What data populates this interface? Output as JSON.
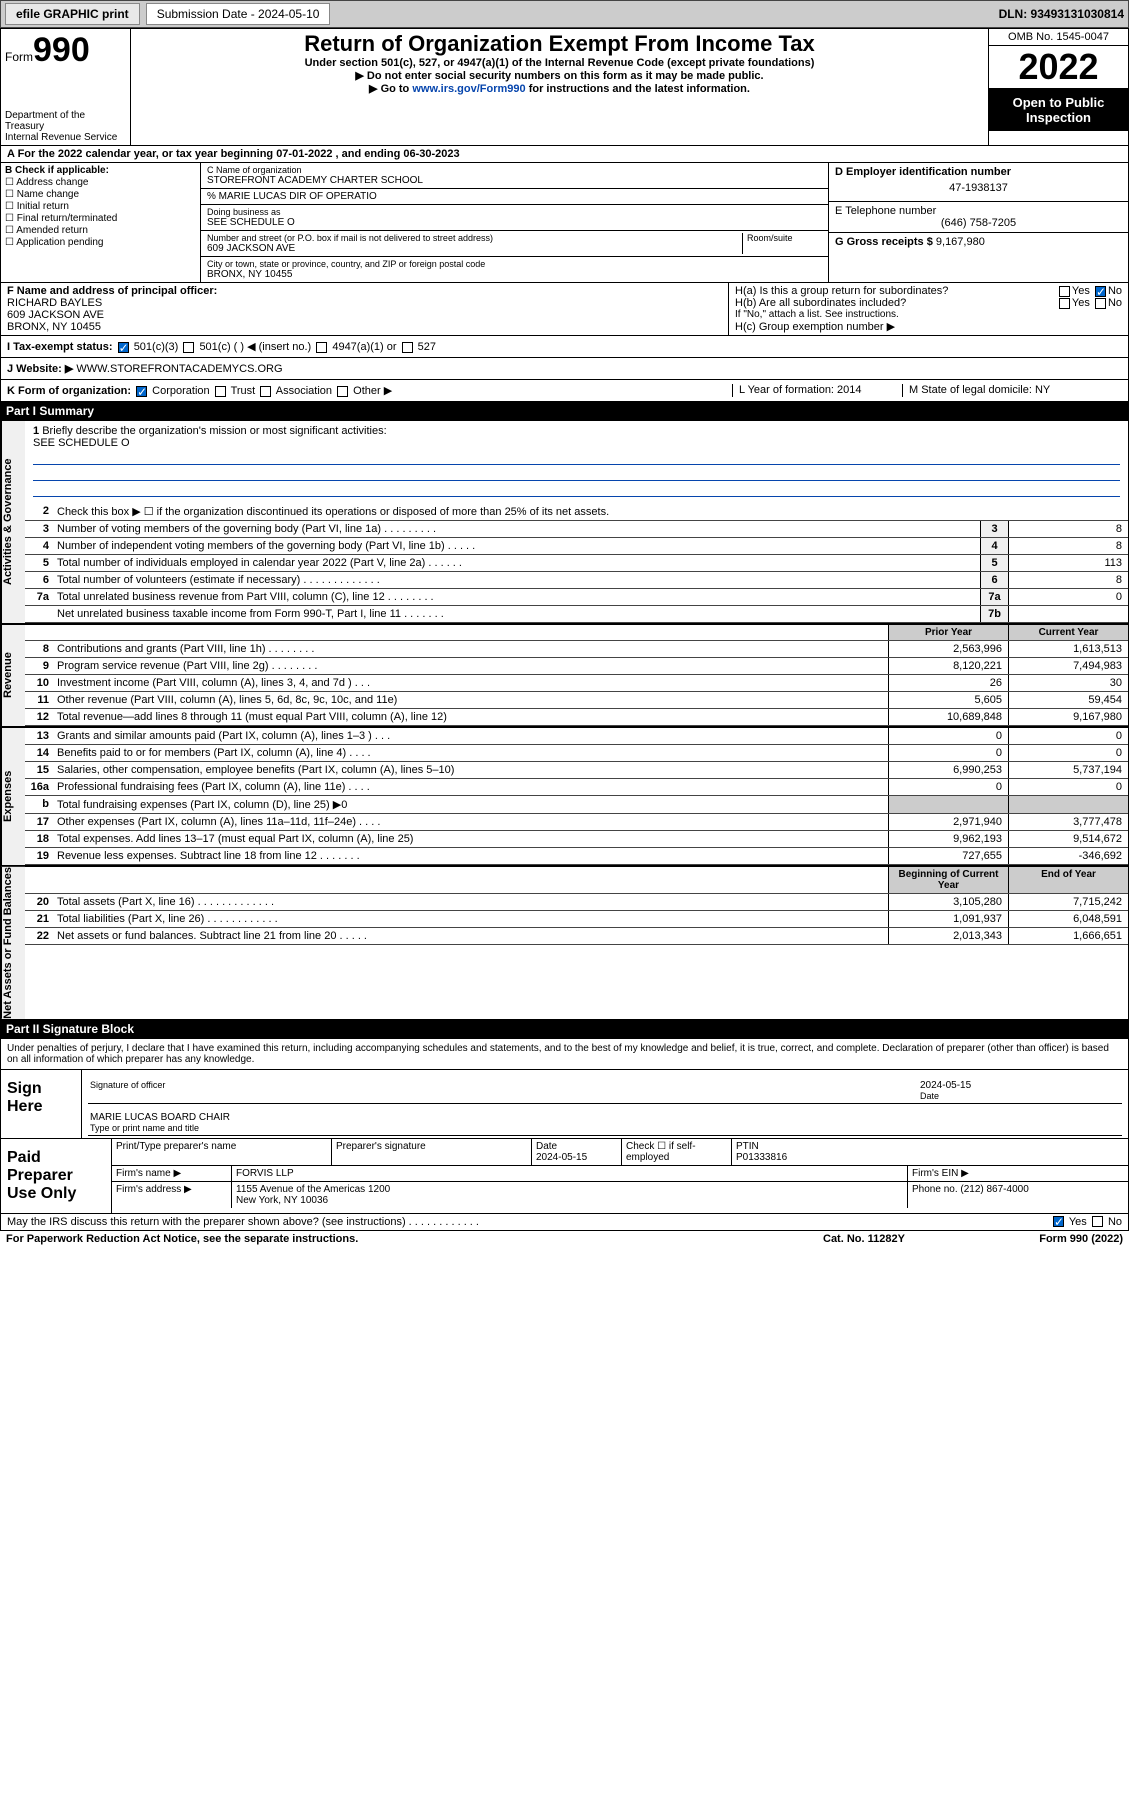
{
  "topbar": {
    "efile": "efile GRAPHIC print",
    "submission": "Submission Date - 2024-05-10",
    "dln": "DLN: 93493131030814"
  },
  "header": {
    "form_label": "Form",
    "form_num": "990",
    "dept": "Department of the Treasury",
    "irs": "Internal Revenue Service",
    "title": "Return of Organization Exempt From Income Tax",
    "sub1": "Under section 501(c), 527, or 4947(a)(1) of the Internal Revenue Code (except private foundations)",
    "sub2": "▶ Do not enter social security numbers on this form as it may be made public.",
    "sub3_pre": "▶ Go to ",
    "sub3_link": "www.irs.gov/Form990",
    "sub3_post": " for instructions and the latest information.",
    "omb": "OMB No. 1545-0047",
    "year": "2022",
    "open": "Open to Public Inspection"
  },
  "row_a": "A For the 2022 calendar year, or tax year beginning 07-01-2022    , and ending 06-30-2023",
  "box_b": {
    "title": "B Check if applicable:",
    "items": [
      "Address change",
      "Name change",
      "Initial return",
      "Final return/terminated",
      "Amended return",
      "Application pending"
    ]
  },
  "box_c": {
    "name_lbl": "C Name of organization",
    "name": "STOREFRONT ACADEMY CHARTER SCHOOL",
    "care": "% MARIE LUCAS DIR OF OPERATIO",
    "dba_lbl": "Doing business as",
    "dba": "SEE SCHEDULE O",
    "street_lbl": "Number and street (or P.O. box if mail is not delivered to street address)",
    "street": "609 JACKSON AVE",
    "room_lbl": "Room/suite",
    "city_lbl": "City or town, state or province, country, and ZIP or foreign postal code",
    "city": "BRONX, NY  10455"
  },
  "box_d": {
    "lbl": "D Employer identification number",
    "val": "47-1938137"
  },
  "box_e": {
    "lbl": "E Telephone number",
    "val": "(646) 758-7205"
  },
  "box_g": {
    "lbl": "G Gross receipts $",
    "val": "9,167,980"
  },
  "box_f": {
    "lbl": "F Name and address of principal officer:",
    "name": "RICHARD BAYLES",
    "addr1": "609 JACKSON AVE",
    "addr2": "BRONX, NY  10455"
  },
  "box_h": {
    "ha": "H(a)  Is this a group return for subordinates?",
    "hb": "H(b)  Are all subordinates included?",
    "hb_note": "If \"No,\" attach a list. See instructions.",
    "hc": "H(c)  Group exemption number ▶",
    "yes": "Yes",
    "no": "No"
  },
  "row_i": {
    "lbl": "I   Tax-exempt status:",
    "opts": [
      "501(c)(3)",
      "501(c) (    ) ◀ (insert no.)",
      "4947(a)(1) or",
      "527"
    ]
  },
  "row_j": {
    "lbl": "J   Website: ▶",
    "val": "WWW.STOREFRONTACADEMYCS.ORG"
  },
  "row_k": {
    "lbl": "K Form of organization:",
    "opts": [
      "Corporation",
      "Trust",
      "Association",
      "Other ▶"
    ],
    "l": "L Year of formation: 2014",
    "m": "M State of legal domicile: NY"
  },
  "part1": {
    "hdr": "Part I      Summary"
  },
  "mission": {
    "num": "1",
    "txt": "Briefly describe the organization's mission or most significant activities:",
    "val": "SEE SCHEDULE O"
  },
  "gov_lines": [
    {
      "n": "2",
      "t": "Check this box ▶ ☐  if the organization discontinued its operations or disposed of more than 25% of its net assets."
    },
    {
      "n": "3",
      "t": "Number of voting members of the governing body (Part VI, line 1a)   .    .    .    .    .    .    .    .    .",
      "b": "3",
      "v": "8"
    },
    {
      "n": "4",
      "t": "Number of independent voting members of the governing body (Part VI, line 1b)    .    .    .    .    .",
      "b": "4",
      "v": "8"
    },
    {
      "n": "5",
      "t": "Total number of individuals employed in calendar year 2022 (Part V, line 2a)    .    .    .    .    .    .",
      "b": "5",
      "v": "113"
    },
    {
      "n": "6",
      "t": "Total number of volunteers (estimate if necessary)   .    .    .    .    .    .    .    .    .    .    .    .    .",
      "b": "6",
      "v": "8"
    },
    {
      "n": "7a",
      "t": "Total unrelated business revenue from Part VIII, column (C), line 12    .    .    .    .    .    .    .    .",
      "b": "7a",
      "v": "0"
    },
    {
      "n": "",
      "t": "Net unrelated business taxable income from Form 990-T, Part I, line 11    .    .    .    .    .    .    .",
      "b": "7b",
      "v": ""
    }
  ],
  "fin_hdr": {
    "py": "Prior Year",
    "cy": "Current Year"
  },
  "revenue": [
    {
      "n": "8",
      "t": "Contributions and grants (Part VIII, line 1h)    .    .    .    .    .    .    .    .",
      "p": "2,563,996",
      "c": "1,613,513"
    },
    {
      "n": "9",
      "t": "Program service revenue (Part VIII, line 2g)    .    .    .    .    .    .    .    .",
      "p": "8,120,221",
      "c": "7,494,983"
    },
    {
      "n": "10",
      "t": "Investment income (Part VIII, column (A), lines 3, 4, and 7d )    .    .    .",
      "p": "26",
      "c": "30"
    },
    {
      "n": "11",
      "t": "Other revenue (Part VIII, column (A), lines 5, 6d, 8c, 9c, 10c, and 11e)",
      "p": "5,605",
      "c": "59,454"
    },
    {
      "n": "12",
      "t": "Total revenue—add lines 8 through 11 (must equal Part VIII, column (A), line 12)",
      "p": "10,689,848",
      "c": "9,167,980"
    }
  ],
  "expenses": [
    {
      "n": "13",
      "t": "Grants and similar amounts paid (Part IX, column (A), lines 1–3 )    .    .    .",
      "p": "0",
      "c": "0"
    },
    {
      "n": "14",
      "t": "Benefits paid to or for members (Part IX, column (A), line 4)    .    .    .    .",
      "p": "0",
      "c": "0"
    },
    {
      "n": "15",
      "t": "Salaries, other compensation, employee benefits (Part IX, column (A), lines 5–10)",
      "p": "6,990,253",
      "c": "5,737,194"
    },
    {
      "n": "16a",
      "t": "Professional fundraising fees (Part IX, column (A), line 11e)    .    .    .    .",
      "p": "0",
      "c": "0"
    },
    {
      "n": "b",
      "t": "Total fundraising expenses (Part IX, column (D), line 25) ▶0",
      "p": "",
      "c": "",
      "grey": true
    },
    {
      "n": "17",
      "t": "Other expenses (Part IX, column (A), lines 11a–11d, 11f–24e)    .    .    .    .",
      "p": "2,971,940",
      "c": "3,777,478"
    },
    {
      "n": "18",
      "t": "Total expenses. Add lines 13–17 (must equal Part IX, column (A), line 25)",
      "p": "9,962,193",
      "c": "9,514,672"
    },
    {
      "n": "19",
      "t": "Revenue less expenses. Subtract line 18 from line 12    .    .    .    .    .    .    .",
      "p": "727,655",
      "c": "-346,692"
    }
  ],
  "na_hdr": {
    "b": "Beginning of Current Year",
    "e": "End of Year"
  },
  "netassets": [
    {
      "n": "20",
      "t": "Total assets (Part X, line 16)    .    .    .    .    .    .    .    .    .    .    .    .    .",
      "p": "3,105,280",
      "c": "7,715,242"
    },
    {
      "n": "21",
      "t": "Total liabilities (Part X, line 26)    .    .    .    .    .    .    .    .    .    .    .    .",
      "p": "1,091,937",
      "c": "6,048,591"
    },
    {
      "n": "22",
      "t": "Net assets or fund balances. Subtract line 21 from line 20    .    .    .    .    .",
      "p": "2,013,343",
      "c": "1,666,651"
    }
  ],
  "vtabs": {
    "gov": "Activities & Governance",
    "rev": "Revenue",
    "exp": "Expenses",
    "na": "Net Assets or Fund Balances"
  },
  "part2": {
    "hdr": "Part II      Signature Block"
  },
  "sig_decl": "Under penalties of perjury, I declare that I have examined this return, including accompanying schedules and statements, and to the best of my knowledge and belief, it is true, correct, and complete. Declaration of preparer (other than officer) is based on all information of which preparer has any knowledge.",
  "sign": {
    "lbl": "Sign Here",
    "sig_of": "Signature of officer",
    "date": "2024-05-15",
    "date_lbl": "Date",
    "name": "MARIE LUCAS  BOARD CHAIR",
    "name_lbl": "Type or print name and title"
  },
  "prep": {
    "lbl": "Paid Preparer Use Only",
    "r1": {
      "c1": "Print/Type preparer's name",
      "c2": "Preparer's signature",
      "c3": "Date\n2024-05-15",
      "c4": "Check ☐ if self-employed",
      "c5": "PTIN\nP01333816"
    },
    "r2": {
      "c1": "Firm's name    ▶",
      "c2": "FORVIS LLP",
      "c3": "Firm's EIN ▶"
    },
    "r3": {
      "c1": "Firm's address ▶",
      "c2": "1155 Avenue of the Americas 1200\nNew York, NY  10036",
      "c3": "Phone no. (212) 867-4000"
    }
  },
  "foot": {
    "q": "May the IRS discuss this return with the preparer shown above? (see instructions)    .    .    .    .    .    .    .    .    .    .    .    .",
    "yes": "Yes",
    "no": "No"
  },
  "pwra": {
    "l": "For Paperwork Reduction Act Notice, see the separate instructions.",
    "m": "Cat. No. 11282Y",
    "r": "Form 990 (2022)"
  }
}
